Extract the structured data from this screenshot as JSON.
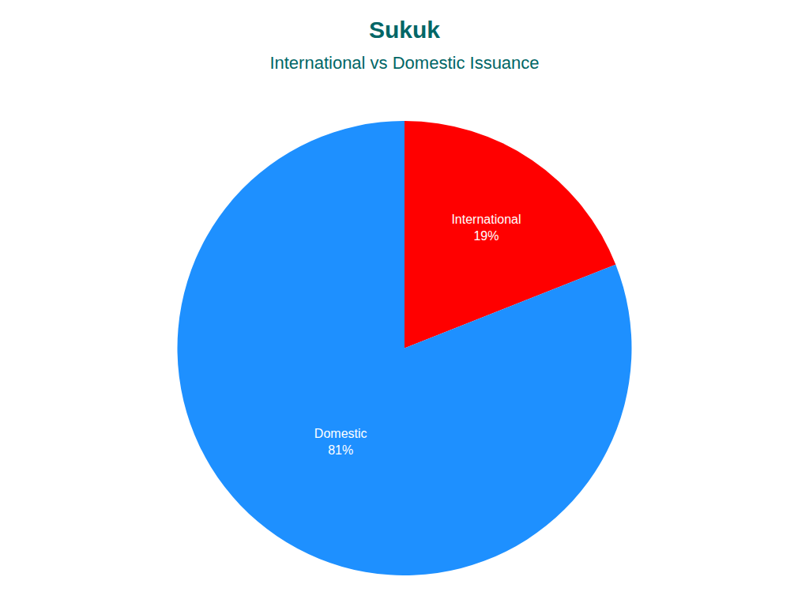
{
  "chart_data": {
    "type": "pie",
    "title": "Sukuk",
    "subtitle": "International vs Domestic Issuance",
    "categories": [
      "International",
      "Domestic"
    ],
    "values": [
      19,
      81
    ],
    "value_labels": [
      "19%",
      "81%"
    ],
    "colors": [
      "#ff0000",
      "#1e90ff"
    ],
    "data_labels": true
  }
}
